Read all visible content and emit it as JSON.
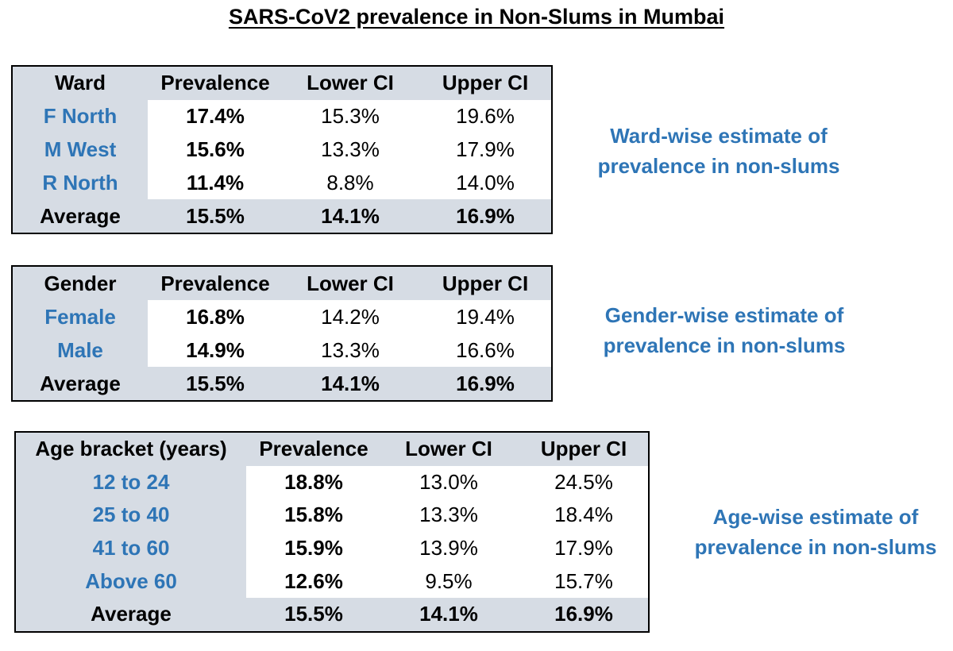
{
  "chart_data": {
    "type": "table",
    "title": "SARS-CoV2 prevalence in Non-Slums in Mumbai",
    "colors": {
      "header_fill": "#d6dce4",
      "body_fill": "#ffffff",
      "label_text": "#2e75b6",
      "note_text": "#2e75b6",
      "border": "#000000"
    },
    "tables": [
      {
        "id": "ward",
        "columns": [
          "Ward",
          "Prevalence",
          "Lower CI",
          "Upper CI"
        ],
        "rows": [
          {
            "label": "F North",
            "prevalence": "17.4%",
            "lower_ci": "15.3%",
            "upper_ci": "19.6%"
          },
          {
            "label": "M West",
            "prevalence": "15.6%",
            "lower_ci": "13.3%",
            "upper_ci": "17.9%"
          },
          {
            "label": "R North",
            "prevalence": "11.4%",
            "lower_ci": "8.8%",
            "upper_ci": "14.0%"
          }
        ],
        "average": {
          "label": "Average",
          "prevalence": "15.5%",
          "lower_ci": "14.1%",
          "upper_ci": "16.9%"
        },
        "note": [
          "Ward-wise estimate of",
          "prevalence in non-slums"
        ]
      },
      {
        "id": "gender",
        "columns": [
          "Gender",
          "Prevalence",
          "Lower CI",
          "Upper CI"
        ],
        "rows": [
          {
            "label": "Female",
            "prevalence": "16.8%",
            "lower_ci": "14.2%",
            "upper_ci": "19.4%"
          },
          {
            "label": "Male",
            "prevalence": "14.9%",
            "lower_ci": "13.3%",
            "upper_ci": "16.6%"
          }
        ],
        "average": {
          "label": "Average",
          "prevalence": "15.5%",
          "lower_ci": "14.1%",
          "upper_ci": "16.9%"
        },
        "note": [
          "Gender-wise estimate of",
          "prevalence in non-slums"
        ]
      },
      {
        "id": "age",
        "columns": [
          "Age bracket (years)",
          "Prevalence",
          "Lower CI",
          "Upper CI"
        ],
        "rows": [
          {
            "label": "12 to 24",
            "prevalence": "18.8%",
            "lower_ci": "13.0%",
            "upper_ci": "24.5%"
          },
          {
            "label": "25 to 40",
            "prevalence": "15.8%",
            "lower_ci": "13.3%",
            "upper_ci": "18.4%"
          },
          {
            "label": "41 to 60",
            "prevalence": "15.9%",
            "lower_ci": "13.9%",
            "upper_ci": "17.9%"
          },
          {
            "label": "Above 60",
            "prevalence": "12.6%",
            "lower_ci": "9.5%",
            "upper_ci": "15.7%"
          }
        ],
        "average": {
          "label": "Average",
          "prevalence": "15.5%",
          "lower_ci": "14.1%",
          "upper_ci": "16.9%"
        },
        "note": [
          "Age-wise estimate of",
          "prevalence in non-slums"
        ]
      }
    ]
  }
}
